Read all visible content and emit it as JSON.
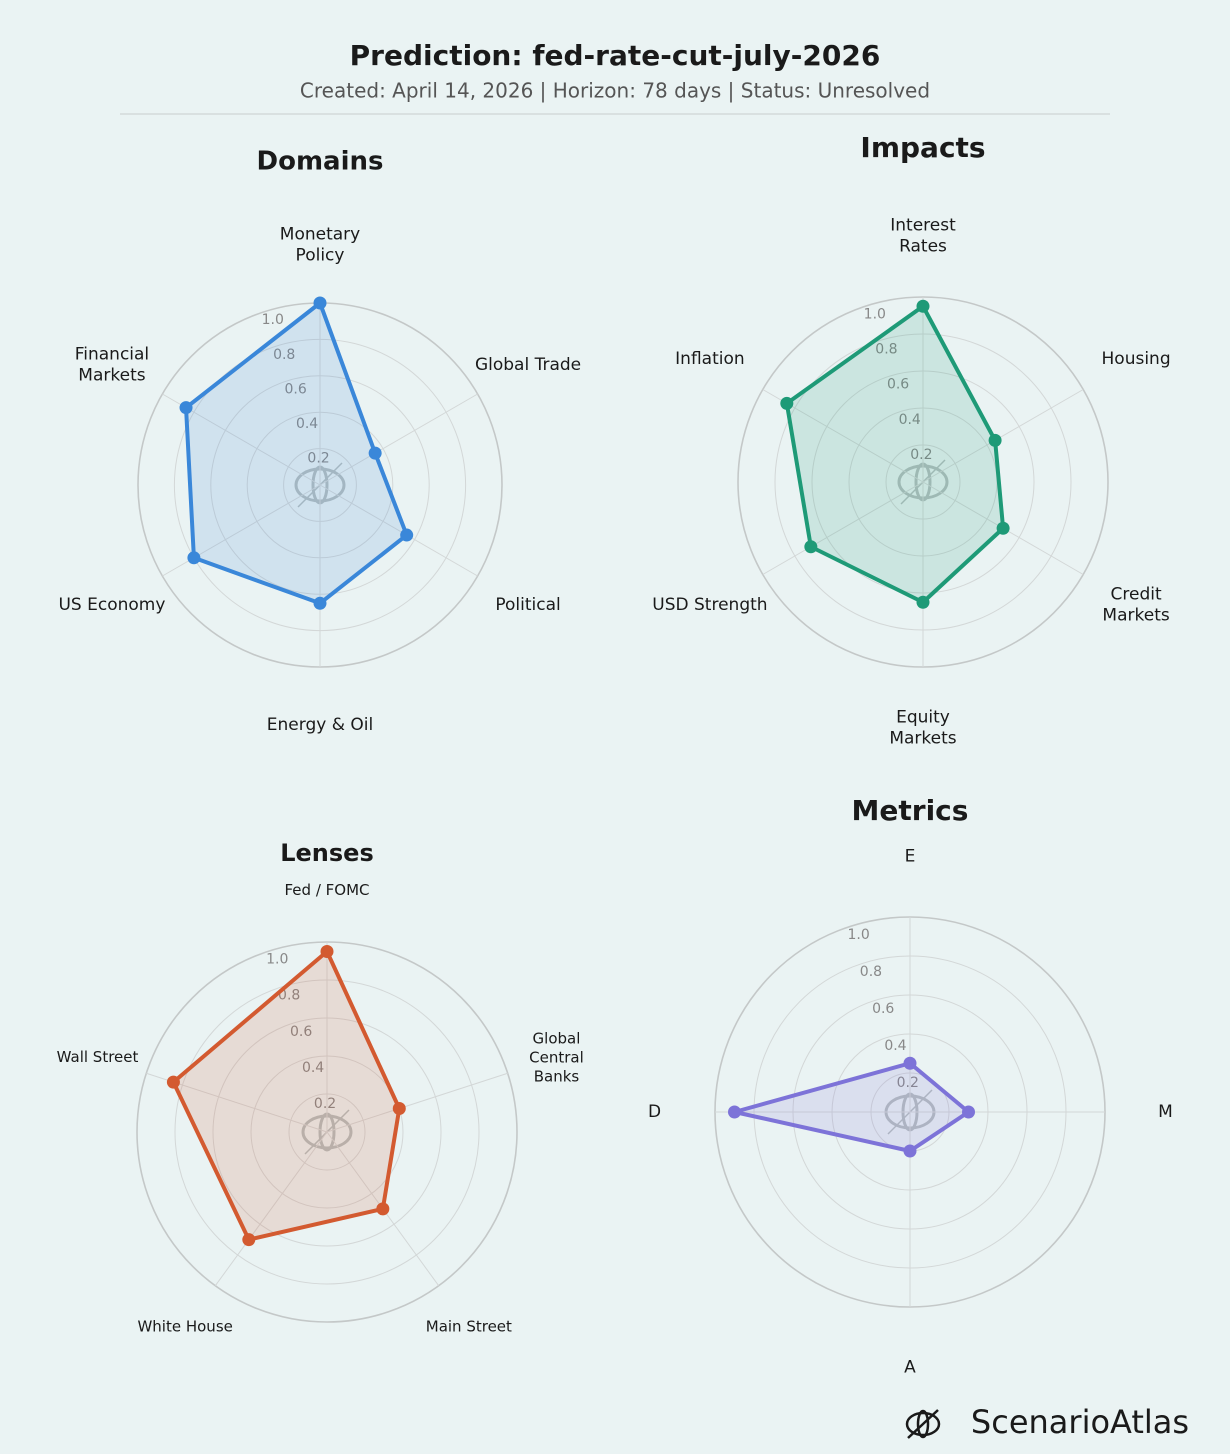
{
  "title": "Prediction: fed-rate-cut-july-2026",
  "subtitle": "Created: April 14, 2026  |  Horizon: 78 days  |  Status: Unresolved",
  "brand": "ScenarioAtlas",
  "chart_data": [
    {
      "type": "radar",
      "title": "Domains",
      "color": "#3a87d9",
      "categories": [
        "Monetary\nPolicy",
        "Global Trade",
        "Political",
        "Energy & Oil",
        "US Economy",
        "Financial\nMarkets"
      ],
      "values": [
        1.0,
        0.35,
        0.55,
        0.65,
        0.8,
        0.85
      ],
      "ylim": [
        0,
        1
      ],
      "yticks": [
        0.2,
        0.4,
        0.6,
        0.8,
        {
          "value": 1,
          "label": "1.0"
        }
      ],
      "grid": true
    },
    {
      "type": "radar",
      "title": "Impacts",
      "color": "#1e9a77",
      "categories": [
        "Interest\nRates",
        "Housing",
        "Credit\nMarkets",
        "Equity\nMarkets",
        "USD Strength",
        "Inflation"
      ],
      "values": [
        0.95,
        0.45,
        0.5,
        0.65,
        0.7,
        0.85
      ],
      "ylim": [
        0,
        1
      ],
      "yticks": [
        0.2,
        0.4,
        0.6,
        0.8,
        {
          "value": 1,
          "label": "1.0"
        }
      ],
      "grid": true
    },
    {
      "type": "radar",
      "title": "Lenses",
      "color": "#d35a30",
      "categories": [
        "Fed / FOMC",
        "Global\nCentral\nBanks",
        "Main Street",
        "White House",
        "Wall Street"
      ],
      "values": [
        0.95,
        0.4,
        0.5,
        0.7,
        0.85
      ],
      "ylim": [
        0,
        1
      ],
      "yticks": [
        0.2,
        0.4,
        0.6,
        0.8,
        {
          "value": 1,
          "label": "1.0"
        }
      ],
      "grid": true
    },
    {
      "type": "radar",
      "title": "Metrics",
      "color": "#7d73d8",
      "categories": [
        "E",
        "M",
        "A",
        "D"
      ],
      "values": [
        0.25,
        0.3,
        0.2,
        0.9
      ],
      "ylim": [
        0,
        1
      ],
      "yticks": [
        0.2,
        0.4,
        0.6,
        0.8,
        {
          "value": 1,
          "label": "1.0"
        }
      ],
      "grid": true
    }
  ]
}
